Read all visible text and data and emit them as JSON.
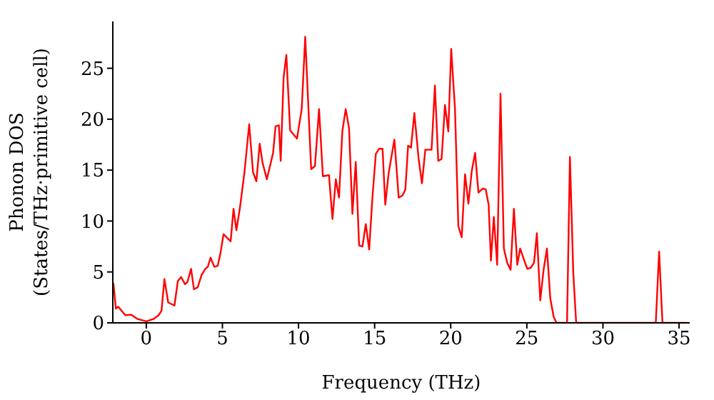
{
  "chart_data": {
    "type": "line",
    "xlabel": "Frequency (THz)",
    "ylabel": "Phonon DOS\n(States/THz·primitive cell)",
    "xlim": [
      -2.2,
      35.7
    ],
    "ylim": [
      0,
      29.6
    ],
    "xticks": [
      0,
      5,
      10,
      15,
      20,
      25,
      30,
      35
    ],
    "yticks": [
      0,
      5,
      10,
      15,
      20,
      25
    ],
    "x": [
      -2.16,
      -2.0,
      -1.85,
      -1.38,
      -1.0,
      -0.6,
      0.0,
      0.5,
      0.81,
      1.0,
      1.19,
      1.44,
      1.85,
      2.07,
      2.29,
      2.54,
      2.7,
      2.94,
      3.13,
      3.38,
      3.63,
      3.88,
      4.04,
      4.22,
      4.47,
      4.69,
      4.88,
      5.07,
      5.54,
      5.73,
      5.92,
      6.17,
      6.45,
      6.76,
      7.01,
      7.23,
      7.45,
      7.64,
      7.92,
      8.33,
      8.49,
      8.71,
      8.83,
      9.02,
      9.2,
      9.45,
      9.9,
      10.21,
      10.44,
      10.83,
      11.08,
      11.35,
      11.6,
      12.0,
      12.23,
      12.45,
      12.66,
      12.88,
      13.1,
      13.32,
      13.54,
      13.76,
      13.98,
      14.2,
      14.42,
      14.64,
      14.86,
      15.08,
      15.3,
      15.52,
      15.7,
      15.92,
      16.3,
      16.58,
      16.83,
      17.02,
      17.2,
      17.39,
      17.61,
      17.89,
      18.11,
      18.33,
      18.55,
      18.74,
      18.96,
      19.18,
      19.4,
      19.62,
      19.84,
      20.03,
      20.28,
      20.5,
      20.72,
      20.94,
      21.16,
      21.38,
      21.6,
      21.82,
      22.1,
      22.3,
      22.49,
      22.64,
      22.83,
      23.05,
      23.27,
      23.49,
      23.71,
      23.93,
      24.15,
      24.37,
      24.56,
      24.81,
      25.03,
      25.25,
      25.47,
      25.66,
      25.88,
      26.1,
      26.32,
      26.54,
      26.76,
      26.95,
      27.64,
      27.83,
      28.05,
      28.24,
      33.47,
      33.69,
      33.91,
      35.55
    ],
    "series": [
      {
        "color": "#ff0000",
        "values": [
          3.9,
          1.4,
          1.6,
          0.75,
          0.8,
          0.4,
          0.15,
          0.4,
          0.75,
          1.2,
          4.3,
          2.0,
          1.7,
          4.1,
          4.5,
          3.8,
          4.0,
          5.3,
          3.3,
          3.5,
          4.7,
          5.3,
          5.5,
          6.4,
          5.5,
          5.6,
          6.9,
          8.7,
          8.0,
          11.2,
          9.1,
          11.5,
          14.8,
          19.5,
          14.8,
          13.9,
          17.6,
          15.7,
          14.1,
          16.7,
          19.3,
          19.4,
          15.9,
          24.1,
          26.3,
          18.9,
          18.1,
          21.0,
          28.1,
          15.1,
          15.4,
          21.0,
          14.4,
          14.5,
          10.2,
          14.1,
          12.3,
          18.8,
          21.0,
          19.1,
          10.7,
          15.8,
          7.6,
          7.5,
          9.7,
          7.2,
          12.4,
          16.6,
          17.1,
          17.1,
          11.6,
          14.7,
          18.0,
          12.3,
          12.5,
          13.1,
          17.4,
          17.2,
          20.6,
          16.1,
          13.7,
          17.0,
          17.0,
          17.0,
          23.3,
          15.9,
          16.1,
          21.4,
          18.8,
          26.9,
          21.0,
          9.5,
          8.4,
          14.6,
          11.7,
          14.9,
          16.7,
          12.8,
          13.2,
          13.1,
          11.6,
          6.1,
          10.4,
          5.7,
          22.5,
          7.3,
          5.9,
          5.2,
          11.2,
          5.7,
          7.3,
          6.2,
          5.3,
          5.4,
          5.9,
          8.8,
          2.2,
          5.2,
          7.3,
          2.4,
          0.6,
          0,
          0,
          16.3,
          4.9,
          0,
          0,
          7.0,
          0,
          0
        ]
      }
    ]
  }
}
